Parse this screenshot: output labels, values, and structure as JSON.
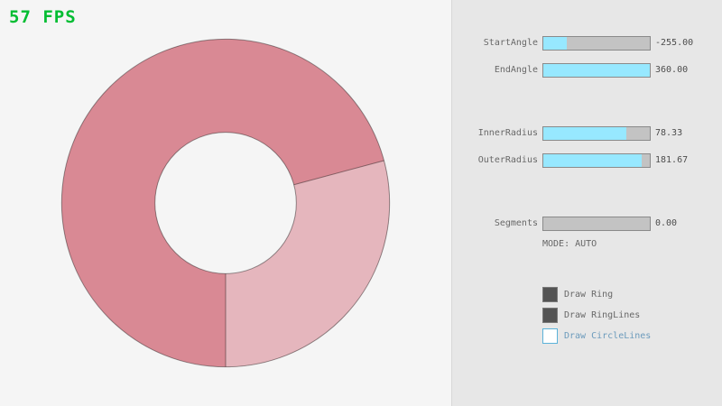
{
  "fps": {
    "text": "57 FPS",
    "color": "#00bd32"
  },
  "colors": {
    "background": "#f5f5f5",
    "panel_background": "#e7e7e7",
    "panel_divider": "#d8d8d8",
    "ring_dark": "#d98994",
    "ring_light": "#e5b6bd",
    "ring_outline": "rgba(0,0,0,0.4)",
    "slider_track": "#c3c3c3",
    "slider_border": "#8a8a8a",
    "slider_fill": "#97e8ff",
    "text_gray": "#686868",
    "text_blue": "#6c9bbc",
    "checkbox_checked": "#545454"
  },
  "panel": {
    "sliders": [
      {
        "label": "StartAngle",
        "value": "-255.00",
        "fill_pct": 22
      },
      {
        "label": "EndAngle",
        "value": "360.00",
        "fill_pct": 100
      },
      {
        "label": "InnerRadius",
        "value": "78.33",
        "fill_pct": 78
      },
      {
        "label": "OuterRadius",
        "value": "181.67",
        "fill_pct": 92
      },
      {
        "label": "Segments",
        "value": "0.00",
        "fill_pct": 0
      }
    ],
    "mode_label": "MODE: AUTO",
    "checkboxes": [
      {
        "label": "Draw Ring",
        "checked": true
      },
      {
        "label": "Draw RingLines",
        "checked": true
      },
      {
        "label": "Draw CircleLines",
        "checked": false
      }
    ]
  }
}
